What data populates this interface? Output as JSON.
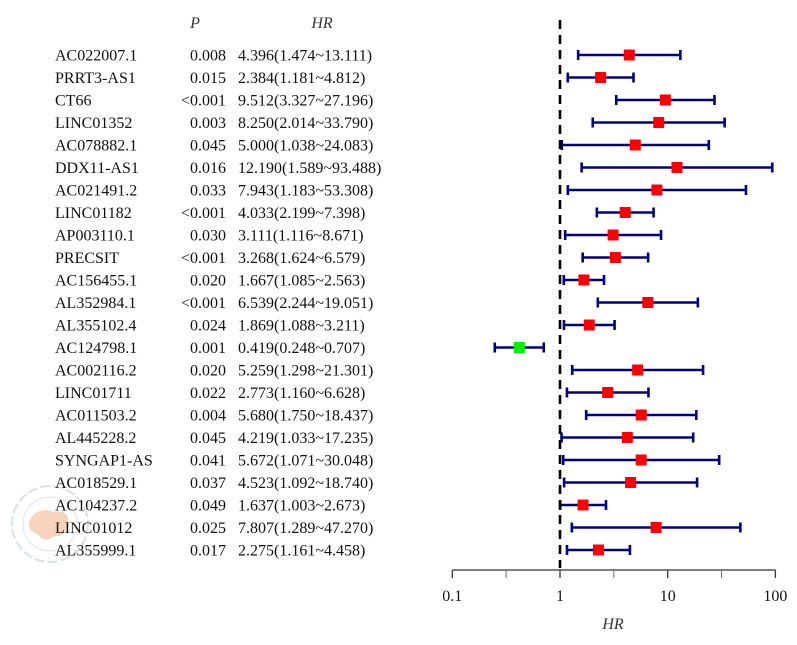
{
  "chart_data": {
    "type": "scatter",
    "subtype": "forest",
    "title": "",
    "headers": {
      "p": "P",
      "hr": "HR"
    },
    "xlabel": "HR",
    "ylabel": "",
    "xscale": "log",
    "xlim": [
      0.1,
      100
    ],
    "xticks": [
      0.1,
      1,
      10,
      100
    ],
    "xtick_labels": [
      "0.1",
      "1",
      "10",
      "100"
    ],
    "minor_ticks": [
      0.316,
      3.16,
      31.6
    ],
    "reference_line": 1,
    "grid": false,
    "legend": "none",
    "rows": [
      {
        "name": "AC022007.1",
        "p": "0.008",
        "hr_text": "4.396(1.474~13.111)",
        "hr": 4.396,
        "lower": 1.474,
        "upper": 13.111
      },
      {
        "name": "PRRT3-AS1",
        "p": "0.015",
        "hr_text": "2.384(1.181~4.812)",
        "hr": 2.384,
        "lower": 1.181,
        "upper": 4.812
      },
      {
        "name": "CT66",
        "p": "<0.001",
        "hr_text": "9.512(3.327~27.196)",
        "hr": 9.512,
        "lower": 3.327,
        "upper": 27.196
      },
      {
        "name": "LINC01352",
        "p": "0.003",
        "hr_text": "8.250(2.014~33.790)",
        "hr": 8.25,
        "lower": 2.014,
        "upper": 33.79
      },
      {
        "name": "AC078882.1",
        "p": "0.045",
        "hr_text": "5.000(1.038~24.083)",
        "hr": 5.0,
        "lower": 1.038,
        "upper": 24.083
      },
      {
        "name": "DDX11-AS1",
        "p": "0.016",
        "hr_text": "12.190(1.589~93.488)",
        "hr": 12.19,
        "lower": 1.589,
        "upper": 93.488
      },
      {
        "name": "AC021491.2",
        "p": "0.033",
        "hr_text": "7.943(1.183~53.308)",
        "hr": 7.943,
        "lower": 1.183,
        "upper": 53.308
      },
      {
        "name": "LINC01182",
        "p": "<0.001",
        "hr_text": "4.033(2.199~7.398)",
        "hr": 4.033,
        "lower": 2.199,
        "upper": 7.398
      },
      {
        "name": "AP003110.1",
        "p": "0.030",
        "hr_text": "3.111(1.116~8.671)",
        "hr": 3.111,
        "lower": 1.116,
        "upper": 8.671
      },
      {
        "name": "PRECSIT",
        "p": "<0.001",
        "hr_text": "3.268(1.624~6.579)",
        "hr": 3.268,
        "lower": 1.624,
        "upper": 6.579
      },
      {
        "name": "AC156455.1",
        "p": "0.020",
        "hr_text": "1.667(1.085~2.563)",
        "hr": 1.667,
        "lower": 1.085,
        "upper": 2.563
      },
      {
        "name": "AL352984.1",
        "p": "<0.001",
        "hr_text": "6.539(2.244~19.051)",
        "hr": 6.539,
        "lower": 2.244,
        "upper": 19.051
      },
      {
        "name": "AL355102.4",
        "p": "0.024",
        "hr_text": "1.869(1.088~3.211)",
        "hr": 1.869,
        "lower": 1.088,
        "upper": 3.211
      },
      {
        "name": "AC124798.1",
        "p": "0.001",
        "hr_text": "0.419(0.248~0.707)",
        "hr": 0.419,
        "lower": 0.248,
        "upper": 0.707
      },
      {
        "name": "AC002116.2",
        "p": "0.020",
        "hr_text": "5.259(1.298~21.301)",
        "hr": 5.259,
        "lower": 1.298,
        "upper": 21.301
      },
      {
        "name": "LINC01711",
        "p": "0.022",
        "hr_text": "2.773(1.160~6.628)",
        "hr": 2.773,
        "lower": 1.16,
        "upper": 6.628
      },
      {
        "name": "AC011503.2",
        "p": "0.004",
        "hr_text": "5.680(1.750~18.437)",
        "hr": 5.68,
        "lower": 1.75,
        "upper": 18.437
      },
      {
        "name": "AL445228.2",
        "p": "0.045",
        "hr_text": "4.219(1.033~17.235)",
        "hr": 4.219,
        "lower": 1.033,
        "upper": 17.235
      },
      {
        "name": "SYNGAP1-AS",
        "p": "0.041",
        "hr_text": "5.672(1.071~30.048)",
        "hr": 5.672,
        "lower": 1.071,
        "upper": 30.048
      },
      {
        "name": "AC018529.1",
        "p": "0.037",
        "hr_text": "4.523(1.092~18.740)",
        "hr": 4.523,
        "lower": 1.092,
        "upper": 18.74
      },
      {
        "name": "AC104237.2",
        "p": "0.049",
        "hr_text": "1.637(1.003~2.673)",
        "hr": 1.637,
        "lower": 1.003,
        "upper": 2.673
      },
      {
        "name": "LINC01012",
        "p": "0.025",
        "hr_text": "7.807(1.289~47.270)",
        "hr": 7.807,
        "lower": 1.289,
        "upper": 47.27
      },
      {
        "name": "AL355999.1",
        "p": "0.017",
        "hr_text": "2.275(1.161~4.458)",
        "hr": 2.275,
        "lower": 1.161,
        "upper": 4.458
      }
    ]
  },
  "colors": {
    "ci_line": "#000080",
    "risk_marker": "#ff0000",
    "protective_marker": "#00ee00",
    "reference_line": "#000000",
    "axis": "#333333"
  },
  "watermark": {
    "label": "Chinese Medical Association logo"
  }
}
